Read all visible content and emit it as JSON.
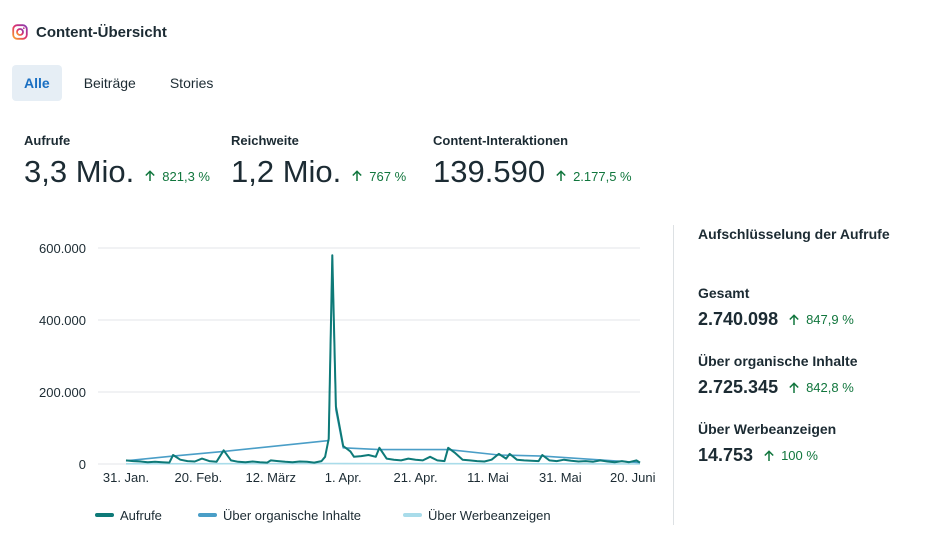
{
  "header": {
    "title": "Content-Übersicht",
    "icon": "instagram-icon"
  },
  "tabs": [
    {
      "label": "Alle",
      "active": true
    },
    {
      "label": "Beiträge",
      "active": false
    },
    {
      "label": "Stories",
      "active": false
    }
  ],
  "kpis": [
    {
      "label": "Aufrufe",
      "value": "3,3 Mio.",
      "change": "821,3 %"
    },
    {
      "label": "Reichweite",
      "value": "1,2 Mio.",
      "change": "767 %"
    },
    {
      "label": "Content-Interaktionen",
      "value": "139.590",
      "change": "2.177,5 %"
    }
  ],
  "breakdown": {
    "title": "Aufschlüsselung der Aufrufe",
    "items": [
      {
        "label": "Gesamt",
        "value": "2.740.098",
        "change": "847,9 %"
      },
      {
        "label": "Über organische Inhalte",
        "value": "2.725.345",
        "change": "842,8 %"
      },
      {
        "label": "Über Werbeanzeigen",
        "value": "14.753",
        "change": "100 %"
      }
    ]
  },
  "colors": {
    "accent": "#1a6fc2",
    "positive": "#11763d",
    "series1": "#0e7a78",
    "series2": "#4a9ec7",
    "series3": "#a9dcea"
  },
  "chart_data": {
    "type": "line",
    "ylim": [
      0,
      600000
    ],
    "yticks": [
      0,
      200000,
      400000,
      600000
    ],
    "ytick_labels": [
      "0",
      "200.000",
      "400.000",
      "600.000"
    ],
    "xticks": [
      {
        "day": 0,
        "label": "31. Jan."
      },
      {
        "day": 20,
        "label": "20. Feb."
      },
      {
        "day": 40,
        "label": "12. März"
      },
      {
        "day": 60,
        "label": "1. Apr."
      },
      {
        "day": 80,
        "label": "21. Apr."
      },
      {
        "day": 100,
        "label": "11. Mai"
      },
      {
        "day": 120,
        "label": "31. Mai"
      },
      {
        "day": 140,
        "label": "20. Juni"
      }
    ],
    "series": [
      {
        "name": "Aufrufe",
        "points": [
          [
            0,
            10000
          ],
          [
            2,
            8000
          ],
          [
            4,
            7000
          ],
          [
            6,
            5000
          ],
          [
            8,
            6000
          ],
          [
            10,
            5000
          ],
          [
            12,
            4000
          ],
          [
            13,
            25000
          ],
          [
            15,
            12000
          ],
          [
            17,
            8000
          ],
          [
            19,
            7000
          ],
          [
            21,
            15000
          ],
          [
            23,
            8000
          ],
          [
            25,
            6000
          ],
          [
            27,
            38000
          ],
          [
            29,
            10000
          ],
          [
            31,
            6000
          ],
          [
            33,
            5000
          ],
          [
            35,
            7000
          ],
          [
            37,
            5000
          ],
          [
            39,
            4000
          ],
          [
            40,
            10000
          ],
          [
            42,
            8000
          ],
          [
            44,
            6000
          ],
          [
            46,
            5000
          ],
          [
            48,
            7000
          ],
          [
            50,
            6000
          ],
          [
            52,
            4000
          ],
          [
            54,
            8000
          ],
          [
            55,
            20000
          ],
          [
            56,
            70000
          ],
          [
            57,
            580000
          ],
          [
            58,
            160000
          ],
          [
            60,
            50000
          ],
          [
            62,
            35000
          ],
          [
            63,
            20000
          ],
          [
            65,
            22000
          ],
          [
            67,
            25000
          ],
          [
            69,
            20000
          ],
          [
            70,
            45000
          ],
          [
            72,
            15000
          ],
          [
            74,
            12000
          ],
          [
            76,
            10000
          ],
          [
            78,
            15000
          ],
          [
            80,
            12000
          ],
          [
            82,
            10000
          ],
          [
            84,
            20000
          ],
          [
            86,
            10000
          ],
          [
            88,
            8000
          ],
          [
            89,
            45000
          ],
          [
            91,
            30000
          ],
          [
            93,
            12000
          ],
          [
            95,
            10000
          ],
          [
            97,
            8000
          ],
          [
            99,
            7000
          ],
          [
            101,
            12000
          ],
          [
            103,
            28000
          ],
          [
            105,
            15000
          ],
          [
            106,
            28000
          ],
          [
            108,
            12000
          ],
          [
            110,
            10000
          ],
          [
            112,
            9000
          ],
          [
            114,
            8000
          ],
          [
            115,
            25000
          ],
          [
            117,
            10000
          ],
          [
            119,
            8000
          ],
          [
            121,
            12000
          ],
          [
            123,
            9000
          ],
          [
            125,
            7000
          ],
          [
            127,
            8000
          ],
          [
            129,
            6000
          ],
          [
            131,
            10000
          ],
          [
            133,
            7000
          ],
          [
            135,
            5000
          ],
          [
            137,
            8000
          ],
          [
            139,
            5000
          ],
          [
            141,
            10000
          ],
          [
            142,
            4000
          ]
        ]
      },
      {
        "name": "Über organische Inhalte",
        "points": [
          [
            0,
            9000
          ],
          [
            13,
            22000
          ],
          [
            27,
            35000
          ],
          [
            56,
            65000
          ],
          [
            57,
            570000
          ],
          [
            58,
            150000
          ],
          [
            60,
            45000
          ],
          [
            70,
            40000
          ],
          [
            89,
            40000
          ],
          [
            103,
            25000
          ],
          [
            115,
            22000
          ],
          [
            142,
            4000
          ]
        ]
      },
      {
        "name": "Über Werbeanzeigen",
        "points": [
          [
            0,
            500
          ],
          [
            30,
            800
          ],
          [
            57,
            1500
          ],
          [
            60,
            1000
          ],
          [
            90,
            800
          ],
          [
            120,
            500
          ],
          [
            142,
            300
          ]
        ]
      }
    ]
  }
}
